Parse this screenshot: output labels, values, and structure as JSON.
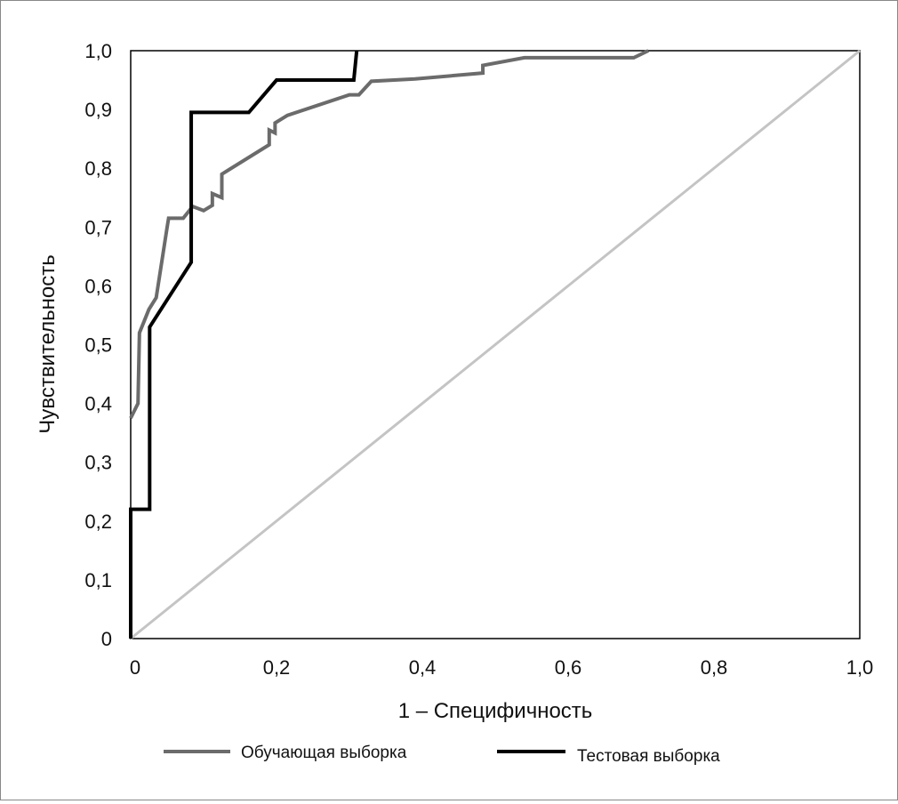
{
  "chart_data": {
    "type": "line",
    "xlabel": "1 – Специфичность",
    "ylabel": "Чувствительность",
    "xlim": [
      0,
      1
    ],
    "ylim": [
      0,
      1
    ],
    "x_ticks": [
      "0",
      "0,2",
      "0,4",
      "0,6",
      "0,8",
      "1,0"
    ],
    "x_tick_values": [
      0,
      0.2,
      0.4,
      0.6,
      0.8,
      1.0
    ],
    "y_ticks": [
      "0",
      "0,1",
      "0,2",
      "0,3",
      "0,4",
      "0,5",
      "0,6",
      "0,7",
      "0,8",
      "0,9",
      "1,0"
    ],
    "y_tick_values": [
      0,
      0.1,
      0.2,
      0.3,
      0.4,
      0.5,
      0.6,
      0.7,
      0.8,
      0.9,
      1.0
    ],
    "legend_position": "bottom",
    "series": [
      {
        "name": "Обучающая выборка",
        "color": "#6b6b6b",
        "points": [
          [
            0,
            0.375
          ],
          [
            0.01,
            0.4
          ],
          [
            0.012,
            0.52
          ],
          [
            0.025,
            0.56
          ],
          [
            0.035,
            0.58
          ],
          [
            0.05,
            0.7
          ],
          [
            0.052,
            0.715
          ],
          [
            0.072,
            0.715
          ],
          [
            0.085,
            0.735
          ],
          [
            0.1,
            0.728
          ],
          [
            0.112,
            0.737
          ],
          [
            0.112,
            0.757
          ],
          [
            0.125,
            0.75
          ],
          [
            0.125,
            0.79
          ],
          [
            0.19,
            0.84
          ],
          [
            0.19,
            0.865
          ],
          [
            0.198,
            0.86
          ],
          [
            0.198,
            0.877
          ],
          [
            0.215,
            0.89
          ],
          [
            0.3,
            0.925
          ],
          [
            0.313,
            0.925
          ],
          [
            0.33,
            0.948
          ],
          [
            0.39,
            0.952
          ],
          [
            0.483,
            0.962
          ],
          [
            0.483,
            0.975
          ],
          [
            0.54,
            0.988
          ],
          [
            0.69,
            0.988
          ],
          [
            0.71,
            1.0
          ]
        ]
      },
      {
        "name": "Тестовая выборка",
        "color": "#000000",
        "points": [
          [
            0,
            0
          ],
          [
            0,
            0.22
          ],
          [
            0.026,
            0.22
          ],
          [
            0.026,
            0.53
          ],
          [
            0.083,
            0.64
          ],
          [
            0.083,
            0.895
          ],
          [
            0.162,
            0.895
          ],
          [
            0.2,
            0.95
          ],
          [
            0.306,
            0.95
          ],
          [
            0.31,
            1.0
          ]
        ]
      },
      {
        "name": "reference",
        "color": "#c4c4c4",
        "points": [
          [
            0,
            0
          ],
          [
            1,
            1
          ]
        ]
      }
    ]
  }
}
